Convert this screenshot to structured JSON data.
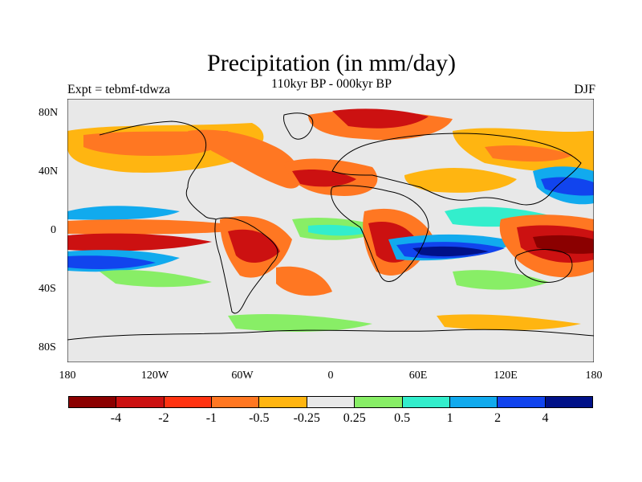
{
  "title": "Precipitation (in mm/day)",
  "subtitle": "110kyr BP - 000kyr BP",
  "left_label": "Expt = tebmf-tdwza",
  "right_label": "DJF",
  "y_ticks": [
    "80N",
    "40N",
    "0",
    "40S",
    "80S"
  ],
  "x_ticks": [
    "180",
    "120W",
    "60W",
    "0",
    "60E",
    "120E",
    "180"
  ],
  "legend": {
    "colors": [
      "#8B0000",
      "#CC1111",
      "#FF3311",
      "#FF7722",
      "#FFB511",
      "#E8E8E8",
      "#88EE66",
      "#33EECC",
      "#11AAEE",
      "#1144EE",
      "#001188"
    ],
    "labels": [
      "-4",
      "-2",
      "-1",
      "-0.5",
      "-0.25",
      "0.25",
      "0.5",
      "1",
      "2",
      "4"
    ]
  },
  "map": {
    "background": "#E8E8E8",
    "x_range": [
      -180,
      180
    ],
    "y_range": [
      -90,
      90
    ]
  }
}
